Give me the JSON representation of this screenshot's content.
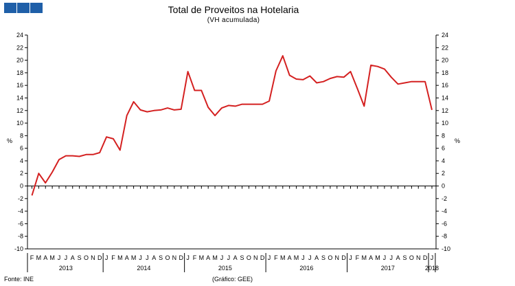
{
  "header": {
    "title": "Total de Proveitos na Hotelaria",
    "subtitle": "(VH acumulada)"
  },
  "footer": {
    "source": "Fonte: INE",
    "credit": "(Gráfico: GEE)"
  },
  "colors": {
    "line": "#d42020",
    "logo": "#1f5fa8",
    "grid": "#000000"
  },
  "chart_data": {
    "type": "line",
    "title": "Total de Proveitos na Hotelaria",
    "subtitle": "(VH acumulada)",
    "ylabel_left": "%",
    "ylabel_right": "%",
    "ylim": [
      -10,
      24
    ],
    "yticks": [
      -10,
      -8,
      -6,
      -4,
      -2,
      0,
      2,
      4,
      6,
      8,
      10,
      12,
      14,
      16,
      18,
      20,
      22,
      24
    ],
    "grid": false,
    "month_labels": [
      "F",
      "M",
      "A",
      "M",
      "J",
      "J",
      "A",
      "S",
      "O",
      "N",
      "D",
      "J",
      "F",
      "M",
      "A",
      "M",
      "J",
      "J",
      "A",
      "S",
      "O",
      "N",
      "D",
      "J",
      "F",
      "M",
      "A",
      "M",
      "J",
      "J",
      "A",
      "S",
      "O",
      "N",
      "D",
      "J",
      "F",
      "M",
      "A",
      "M",
      "J",
      "J",
      "A",
      "S",
      "O",
      "N",
      "D",
      "J",
      "F",
      "M",
      "A",
      "M",
      "J",
      "J",
      "A",
      "S",
      "O",
      "N",
      "D",
      "J"
    ],
    "year_labels": [
      {
        "label": "2013",
        "start": 0,
        "end": 10
      },
      {
        "label": "2014",
        "start": 11,
        "end": 22
      },
      {
        "label": "2015",
        "start": 23,
        "end": 34
      },
      {
        "label": "2016",
        "start": 35,
        "end": 46
      },
      {
        "label": "2017",
        "start": 47,
        "end": 58
      },
      {
        "label": "2018",
        "start": 59,
        "end": 59
      }
    ],
    "series": [
      {
        "values": [
          -1.5,
          2.0,
          0.5,
          2.2,
          4.2,
          4.8,
          4.8,
          4.7,
          5.0,
          5.0,
          5.3,
          7.8,
          7.5,
          5.7,
          11.2,
          13.4,
          12.1,
          11.8,
          12.0,
          12.1,
          12.4,
          12.1,
          12.2,
          18.2,
          15.2,
          15.2,
          12.5,
          11.2,
          12.4,
          12.8,
          12.7,
          13.0,
          13.0,
          13.0,
          13.0,
          13.5,
          18.3,
          20.7,
          17.6,
          17.0,
          16.9,
          17.5,
          16.4,
          16.6,
          17.1,
          17.4,
          17.3,
          18.2,
          15.5,
          12.7,
          19.2,
          19.0,
          18.6,
          17.3,
          16.2,
          16.4,
          16.6,
          16.6,
          16.6,
          12.1
        ]
      }
    ]
  }
}
